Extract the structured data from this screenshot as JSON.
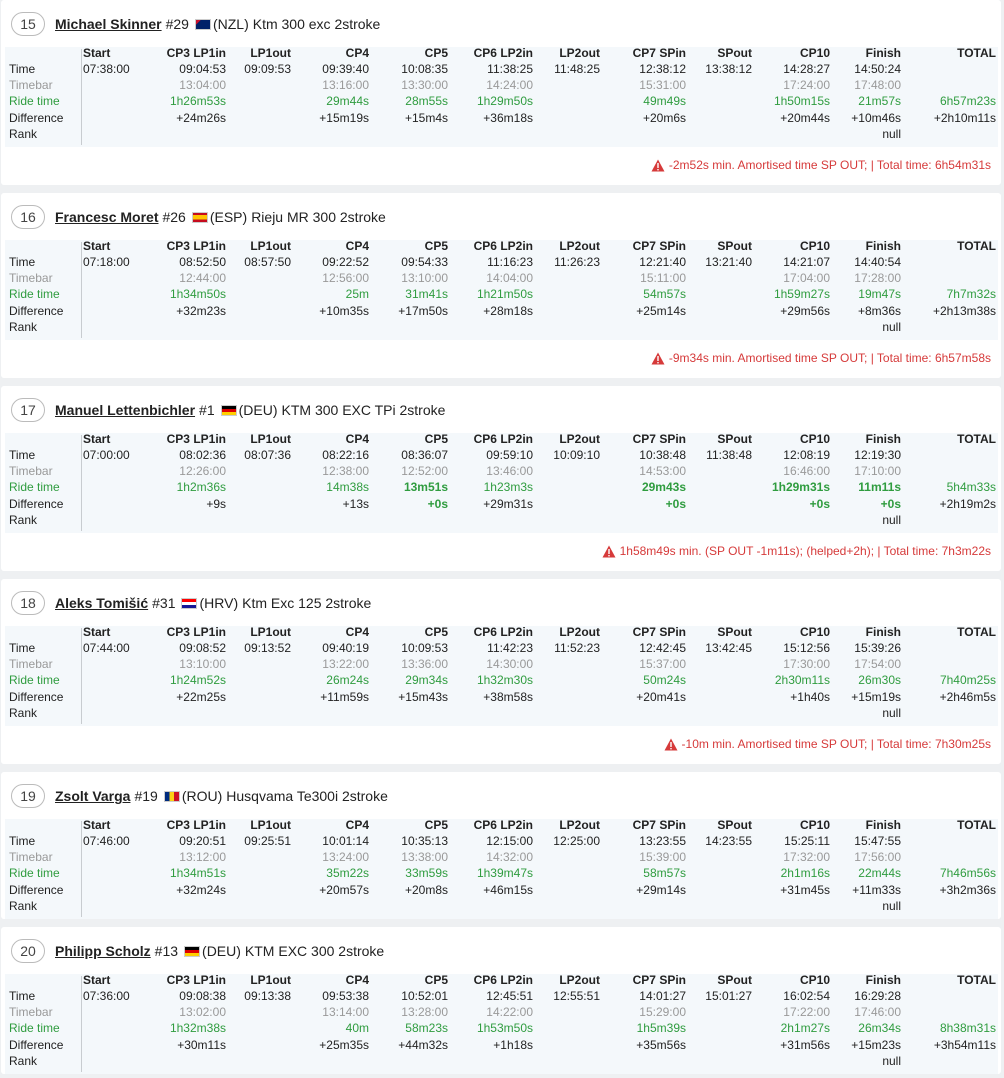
{
  "columns": [
    "Start",
    "CP3 LP1in",
    "LP1out",
    "CP4",
    "CP5",
    "CP6 LP2in",
    "LP2out",
    "CP7 SPin",
    "SPout",
    "CP10",
    "Finish",
    "TOTAL"
  ],
  "row_labels": [
    "Time",
    "Timebar",
    "Ride time",
    "Difference",
    "Rank"
  ],
  "riders": [
    {
      "rank": "15",
      "name": "Michael Skinner",
      "number": "#29",
      "country": "(NZL)",
      "bike": "Ktm 300 exc 2stroke",
      "best": [],
      "rows": [
        [
          "07:38:00",
          "09:04:53",
          "09:09:53",
          "09:39:40",
          "10:08:35",
          "11:38:25",
          "11:48:25",
          "12:38:12",
          "13:38:12",
          "14:28:27",
          "14:50:24",
          null
        ],
        [
          null,
          "13:04:00",
          null,
          "13:16:00",
          "13:30:00",
          "14:24:00",
          null,
          "15:31:00",
          null,
          "17:24:00",
          "17:48:00",
          null
        ],
        [
          null,
          "1h26m53s",
          null,
          "29m44s",
          "28m55s",
          "1h29m50s",
          null,
          "49m49s",
          null,
          "1h50m15s",
          "21m57s",
          "6h57m23s"
        ],
        [
          null,
          "+24m26s",
          null,
          "+15m19s",
          "+15m4s",
          "+36m18s",
          null,
          "+20m6s",
          null,
          "+20m44s",
          "+10m46s",
          "+2h10m11s"
        ],
        [
          null,
          null,
          null,
          null,
          null,
          null,
          null,
          null,
          null,
          null,
          "null",
          null
        ]
      ],
      "note": "-2m52s min. Amortised time SP OUT; | Total time: 6h54m31s"
    },
    {
      "rank": "16",
      "name": "Francesc Moret",
      "number": "#26",
      "country": "(ESP)",
      "bike": "Rieju MR 300 2stroke",
      "best": [],
      "rows": [
        [
          "07:18:00",
          "08:52:50",
          "08:57:50",
          "09:22:52",
          "09:54:33",
          "11:16:23",
          "11:26:23",
          "12:21:40",
          "13:21:40",
          "14:21:07",
          "14:40:54",
          null
        ],
        [
          null,
          "12:44:00",
          null,
          "12:56:00",
          "13:10:00",
          "14:04:00",
          null,
          "15:11:00",
          null,
          "17:04:00",
          "17:28:00",
          null
        ],
        [
          null,
          "1h34m50s",
          null,
          "25m",
          "31m41s",
          "1h21m50s",
          null,
          "54m57s",
          null,
          "1h59m27s",
          "19m47s",
          "7h7m32s"
        ],
        [
          null,
          "+32m23s",
          null,
          "+10m35s",
          "+17m50s",
          "+28m18s",
          null,
          "+25m14s",
          null,
          "+29m56s",
          "+8m36s",
          "+2h13m38s"
        ],
        [
          null,
          null,
          null,
          null,
          null,
          null,
          null,
          null,
          null,
          null,
          "null",
          null
        ]
      ],
      "note": "-9m34s min. Amortised time SP OUT; | Total time: 6h57m58s"
    },
    {
      "rank": "17",
      "name": "Manuel Lettenbichler",
      "number": "#1",
      "country": "(DEU)",
      "bike": "KTM 300 EXC TPi 2stroke",
      "best": [
        4,
        7,
        9,
        10
      ],
      "rows": [
        [
          "07:00:00",
          "08:02:36",
          "08:07:36",
          "08:22:16",
          "08:36:07",
          "09:59:10",
          "10:09:10",
          "10:38:48",
          "11:38:48",
          "12:08:19",
          "12:19:30",
          null
        ],
        [
          null,
          "12:26:00",
          null,
          "12:38:00",
          "12:52:00",
          "13:46:00",
          null,
          "14:53:00",
          null,
          "16:46:00",
          "17:10:00",
          null
        ],
        [
          null,
          "1h2m36s",
          null,
          "14m38s",
          "13m51s",
          "1h23m3s",
          null,
          "29m43s",
          null,
          "1h29m31s",
          "11m11s",
          "5h4m33s"
        ],
        [
          null,
          "+9s",
          null,
          "+13s",
          "+0s",
          "+29m31s",
          null,
          "+0s",
          null,
          "+0s",
          "+0s",
          "+2h19m2s"
        ],
        [
          null,
          null,
          null,
          null,
          null,
          null,
          null,
          null,
          null,
          null,
          "null",
          null
        ]
      ],
      "note": "1h58m49s min. (SP OUT -1m11s); (helped+2h); | Total time: 7h3m22s"
    },
    {
      "rank": "18",
      "name": "Aleks Tomišić",
      "number": "#31",
      "country": "(HRV)",
      "bike": "Ktm Exc 125 2stroke",
      "best": [],
      "rows": [
        [
          "07:44:00",
          "09:08:52",
          "09:13:52",
          "09:40:19",
          "10:09:53",
          "11:42:23",
          "11:52:23",
          "12:42:45",
          "13:42:45",
          "15:12:56",
          "15:39:26",
          null
        ],
        [
          null,
          "13:10:00",
          null,
          "13:22:00",
          "13:36:00",
          "14:30:00",
          null,
          "15:37:00",
          null,
          "17:30:00",
          "17:54:00",
          null
        ],
        [
          null,
          "1h24m52s",
          null,
          "26m24s",
          "29m34s",
          "1h32m30s",
          null,
          "50m24s",
          null,
          "2h30m11s",
          "26m30s",
          "7h40m25s"
        ],
        [
          null,
          "+22m25s",
          null,
          "+11m59s",
          "+15m43s",
          "+38m58s",
          null,
          "+20m41s",
          null,
          "+1h40s",
          "+15m19s",
          "+2h46m5s"
        ],
        [
          null,
          null,
          null,
          null,
          null,
          null,
          null,
          null,
          null,
          null,
          "null",
          null
        ]
      ],
      "note": "-10m min. Amortised time SP OUT; | Total time: 7h30m25s"
    },
    {
      "rank": "19",
      "name": "Zsolt Varga",
      "number": "#19",
      "country": "(ROU)",
      "bike": "Husqvama Te300i 2stroke",
      "best": [],
      "rows": [
        [
          "07:46:00",
          "09:20:51",
          "09:25:51",
          "10:01:14",
          "10:35:13",
          "12:15:00",
          "12:25:00",
          "13:23:55",
          "14:23:55",
          "15:25:11",
          "15:47:55",
          null
        ],
        [
          null,
          "13:12:00",
          null,
          "13:24:00",
          "13:38:00",
          "14:32:00",
          null,
          "15:39:00",
          null,
          "17:32:00",
          "17:56:00",
          null
        ],
        [
          null,
          "1h34m51s",
          null,
          "35m22s",
          "33m59s",
          "1h39m47s",
          null,
          "58m57s",
          null,
          "2h1m16s",
          "22m44s",
          "7h46m56s"
        ],
        [
          null,
          "+32m24s",
          null,
          "+20m57s",
          "+20m8s",
          "+46m15s",
          null,
          "+29m14s",
          null,
          "+31m45s",
          "+11m33s",
          "+3h2m36s"
        ],
        [
          null,
          null,
          null,
          null,
          null,
          null,
          null,
          null,
          null,
          null,
          "null",
          null
        ]
      ]
    },
    {
      "rank": "20",
      "name": "Philipp Scholz",
      "number": "#13",
      "country": "(DEU)",
      "bike": "KTM EXC 300 2stroke",
      "best": [],
      "rows": [
        [
          "07:36:00",
          "09:08:38",
          "09:13:38",
          "09:53:38",
          "10:52:01",
          "12:45:51",
          "12:55:51",
          "14:01:27",
          "15:01:27",
          "16:02:54",
          "16:29:28",
          null
        ],
        [
          null,
          "13:02:00",
          null,
          "13:14:00",
          "13:28:00",
          "14:22:00",
          null,
          "15:29:00",
          null,
          "17:22:00",
          "17:46:00",
          null
        ],
        [
          null,
          "1h32m38s",
          null,
          "40m",
          "58m23s",
          "1h53m50s",
          null,
          "1h5m39s",
          null,
          "2h1m27s",
          "26m34s",
          "8h38m31s"
        ],
        [
          null,
          "+30m11s",
          null,
          "+25m35s",
          "+44m32s",
          "+1h18s",
          null,
          "+35m56s",
          null,
          "+31m56s",
          "+15m23s",
          "+3h54m11s"
        ],
        [
          null,
          null,
          null,
          null,
          null,
          null,
          null,
          null,
          null,
          null,
          "null",
          null
        ]
      ]
    }
  ]
}
